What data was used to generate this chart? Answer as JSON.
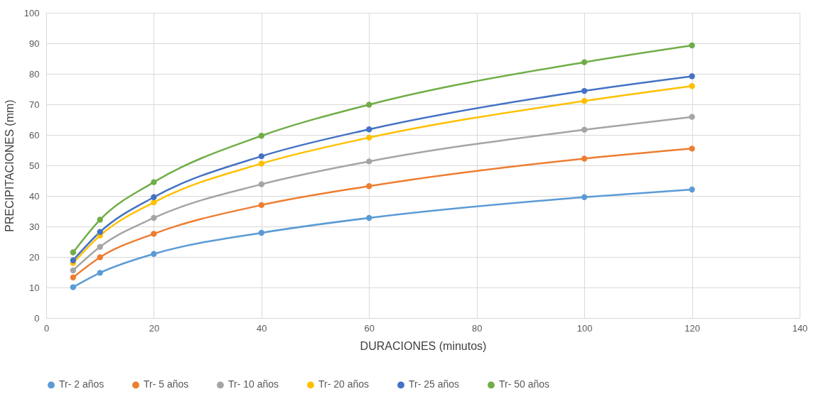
{
  "chart_data": {
    "type": "line",
    "xlabel": "DURACIONES (minutos)",
    "ylabel": "PRECIPITACIONES (mm)",
    "x": [
      5,
      10,
      20,
      40,
      60,
      100,
      120
    ],
    "xlim": [
      0,
      140
    ],
    "xticks": [
      0,
      20,
      40,
      60,
      80,
      100,
      120,
      140
    ],
    "ylim": [
      0,
      100
    ],
    "yticks": [
      0,
      10,
      20,
      30,
      40,
      50,
      60,
      70,
      80,
      90,
      100
    ],
    "grid": true,
    "legend": "bottom",
    "marker": "circle",
    "line_style": "solid",
    "series": [
      {
        "name": "Tr- 2 años",
        "color": "#5b9bd5",
        "values": [
          10.1,
          14.8,
          21.0,
          27.9,
          32.8,
          39.6,
          42.1
        ]
      },
      {
        "name": "Tr- 5 años",
        "color": "#ed7d31",
        "values": [
          13.3,
          19.9,
          27.6,
          37.0,
          43.2,
          52.2,
          55.5
        ]
      },
      {
        "name": "Tr- 10 años",
        "color": "#a5a5a5",
        "values": [
          15.6,
          23.3,
          32.8,
          43.8,
          51.3,
          61.7,
          65.9
        ]
      },
      {
        "name": "Tr- 20 años",
        "color": "#ffc000",
        "values": [
          18.0,
          27.0,
          37.9,
          50.6,
          59.1,
          71.1,
          76.0
        ]
      },
      {
        "name": "Tr- 25 años",
        "color": "#4472c4",
        "values": [
          18.9,
          28.2,
          39.6,
          53.0,
          61.8,
          74.4,
          79.2
        ]
      },
      {
        "name": "Tr- 50 años",
        "color": "#70ad47",
        "values": [
          21.5,
          32.2,
          44.5,
          59.7,
          69.9,
          83.8,
          89.3
        ]
      }
    ]
  }
}
